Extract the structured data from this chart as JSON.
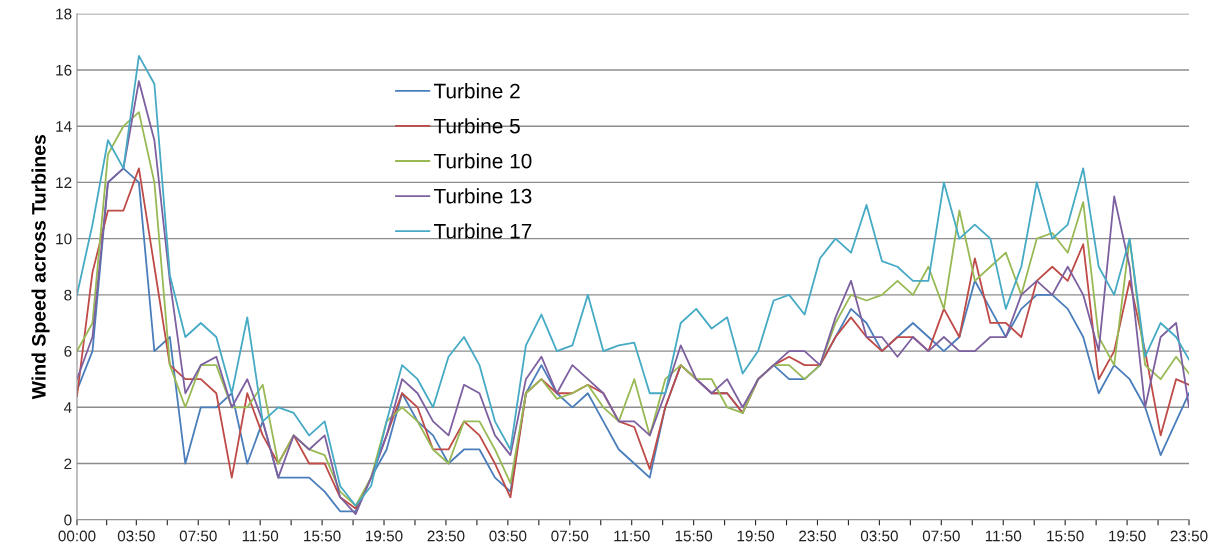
{
  "chart_data": {
    "type": "line",
    "ylabel": "Wind Speed across Turbines",
    "x": [
      "2000-01-01T00:00",
      "2000-01-01T01:00",
      "2000-01-01T02:00",
      "2000-01-01T03:00",
      "2000-01-01T04:00",
      "2000-01-01T05:00",
      "2000-01-01T06:00",
      "2000-01-01T07:00",
      "2000-01-01T08:00",
      "2000-01-01T09:00",
      "2000-01-01T10:00",
      "2000-01-01T11:00",
      "2000-01-01T12:00",
      "2000-01-01T13:00",
      "2000-01-01T14:00",
      "2000-01-01T15:00",
      "2000-01-01T16:00",
      "2000-01-01T17:00",
      "2000-01-01T18:00",
      "2000-01-01T19:00",
      "2000-01-01T20:00",
      "2000-01-01T21:00",
      "2000-01-01T22:00",
      "2000-01-01T23:00",
      "2000-01-02T00:00",
      "2000-01-02T01:00",
      "2000-01-02T02:00",
      "2000-01-02T03:00",
      "2000-01-02T04:00",
      "2000-01-02T05:00",
      "2000-01-02T06:00",
      "2000-01-02T07:00",
      "2000-01-02T08:00",
      "2000-01-02T09:00",
      "2000-01-02T10:00",
      "2000-01-02T11:00",
      "2000-01-02T12:00",
      "2000-01-02T13:00",
      "2000-01-02T14:00",
      "2000-01-02T15:00",
      "2000-01-02T16:00",
      "2000-01-02T17:00",
      "2000-01-02T18:00",
      "2000-01-02T19:00",
      "2000-01-02T20:00",
      "2000-01-02T21:00",
      "2000-01-02T22:00",
      "2000-01-02T23:00",
      "2000-01-03T00:00",
      "2000-01-03T01:00",
      "2000-01-03T02:00",
      "2000-01-03T03:00",
      "2000-01-03T04:00",
      "2000-01-03T05:00",
      "2000-01-03T06:00",
      "2000-01-03T07:00",
      "2000-01-03T08:00",
      "2000-01-03T09:00",
      "2000-01-03T10:00",
      "2000-01-03T11:00",
      "2000-01-03T12:00",
      "2000-01-03T13:00",
      "2000-01-03T14:00",
      "2000-01-03T15:00",
      "2000-01-03T16:00",
      "2000-01-03T17:00",
      "2000-01-03T18:00",
      "2000-01-03T19:00",
      "2000-01-03T20:00",
      "2000-01-03T21:00",
      "2000-01-03T22:00",
      "2000-01-03T23:00",
      "2000-01-03T23:50"
    ],
    "xlim": [
      "2000-01-01T00:00",
      "2000-01-03T23:50"
    ],
    "xticks": [
      {
        "value": "2000-01-01T00:00",
        "label": "00:00"
      },
      {
        "value": "2000-01-01T01:55",
        "label": null
      },
      {
        "value": "2000-01-01T03:50",
        "label": "03:50"
      },
      {
        "value": "2000-01-01T05:50",
        "label": null
      },
      {
        "value": "2000-01-01T07:50",
        "label": "07:50"
      },
      {
        "value": "2000-01-01T09:50",
        "label": null
      },
      {
        "value": "2000-01-01T11:50",
        "label": "11:50"
      },
      {
        "value": "2000-01-01T13:50",
        "label": null
      },
      {
        "value": "2000-01-01T15:50",
        "label": "15:50"
      },
      {
        "value": "2000-01-01T17:50",
        "label": null
      },
      {
        "value": "2000-01-01T19:50",
        "label": "19:50"
      },
      {
        "value": "2000-01-01T21:50",
        "label": null
      },
      {
        "value": "2000-01-01T23:50",
        "label": "23:50"
      },
      {
        "value": "2000-01-02T01:50",
        "label": null
      },
      {
        "value": "2000-01-02T03:50",
        "label": "03:50"
      },
      {
        "value": "2000-01-02T05:50",
        "label": null
      },
      {
        "value": "2000-01-02T07:50",
        "label": "07:50"
      },
      {
        "value": "2000-01-02T09:50",
        "label": null
      },
      {
        "value": "2000-01-02T11:50",
        "label": "11:50"
      },
      {
        "value": "2000-01-02T13:50",
        "label": null
      },
      {
        "value": "2000-01-02T15:50",
        "label": "15:50"
      },
      {
        "value": "2000-01-02T17:50",
        "label": null
      },
      {
        "value": "2000-01-02T19:50",
        "label": "19:50"
      },
      {
        "value": "2000-01-02T21:50",
        "label": null
      },
      {
        "value": "2000-01-02T23:50",
        "label": "23:50"
      },
      {
        "value": "2000-01-03T01:50",
        "label": null
      },
      {
        "value": "2000-01-03T03:50",
        "label": "03:50"
      },
      {
        "value": "2000-01-03T05:50",
        "label": null
      },
      {
        "value": "2000-01-03T07:50",
        "label": "07:50"
      },
      {
        "value": "2000-01-03T09:50",
        "label": null
      },
      {
        "value": "2000-01-03T11:50",
        "label": "11:50"
      },
      {
        "value": "2000-01-03T13:50",
        "label": null
      },
      {
        "value": "2000-01-03T15:50",
        "label": "15:50"
      },
      {
        "value": "2000-01-03T17:50",
        "label": null
      },
      {
        "value": "2000-01-03T19:50",
        "label": "19:50"
      },
      {
        "value": "2000-01-03T21:50",
        "label": null
      },
      {
        "value": "2000-01-03T23:50",
        "label": "23:50"
      }
    ],
    "ylim": [
      0,
      18
    ],
    "yticks": [
      0,
      2,
      4,
      6,
      8,
      10,
      12,
      14,
      16,
      18
    ],
    "grid": "y",
    "legend": "top left",
    "marker": "none",
    "line_style": "solid",
    "series": [
      {
        "name": "Turbine 2",
        "color": "#4a7ebb",
        "values": [
          4.6,
          6,
          12,
          12.5,
          12,
          6,
          6.5,
          2,
          4,
          4,
          4.5,
          2,
          3.5,
          1.5,
          1.5,
          1.5,
          1,
          0.3,
          0.3,
          1.5,
          2.5,
          4.5,
          3.5,
          3,
          2,
          2.5,
          2.5,
          1.5,
          1,
          4.5,
          5.5,
          4.5,
          4,
          4.5,
          3.5,
          2.5,
          2,
          1.5,
          4,
          5.5,
          5,
          4.5,
          4.5,
          3.8,
          5,
          5.5,
          5,
          5,
          5.5,
          6.5,
          7.5,
          7,
          6,
          6.5,
          7,
          6.5,
          6,
          6.5,
          8.5,
          7.5,
          6.5,
          7.5,
          8,
          8,
          7.5,
          6.5,
          4.5,
          5.5,
          5,
          4,
          2.3,
          3.5,
          4.5
        ]
      },
      {
        "name": "Turbine 5",
        "color": "#be4b48",
        "values": [
          4.4,
          8.8,
          11,
          11,
          12.5,
          9,
          5.5,
          5,
          5,
          4.5,
          1.5,
          4.5,
          3,
          2,
          3,
          2,
          2,
          0.8,
          0.4,
          1.5,
          3,
          4.5,
          4,
          2.5,
          2.5,
          3.5,
          3,
          2,
          0.8,
          4.5,
          5,
          4.5,
          4.5,
          4.8,
          4.5,
          3.5,
          3.3,
          1.8,
          4,
          5.5,
          5,
          4.5,
          4.5,
          3.8,
          5,
          5.5,
          5.8,
          5.5,
          5.5,
          6.5,
          7.2,
          6.5,
          6,
          6.5,
          6.5,
          6,
          7.5,
          6.5,
          9.3,
          7,
          7,
          6.5,
          8.5,
          9,
          8.5,
          9.8,
          5,
          6,
          8.5,
          6,
          3,
          5,
          4.8
        ]
      },
      {
        "name": "Turbine 10",
        "color": "#98b954",
        "values": [
          6,
          7,
          13,
          14,
          14.5,
          12,
          5.5,
          4,
          5.5,
          5.5,
          4,
          4,
          4.8,
          2,
          3,
          2.5,
          2.3,
          1,
          0.5,
          1.5,
          3.5,
          4,
          3.5,
          2.5,
          2,
          3.5,
          3.5,
          2.5,
          1.3,
          4.5,
          5,
          4.3,
          4.5,
          4.8,
          4,
          3.5,
          5,
          3,
          5,
          5.5,
          5,
          5,
          4,
          3.8,
          5,
          5.5,
          5.5,
          5,
          5.5,
          7,
          8,
          7.8,
          8,
          8.5,
          8,
          9,
          7.5,
          11,
          8.5,
          9,
          9.5,
          8,
          10,
          10.2,
          9.5,
          11.3,
          6.5,
          5.5,
          10,
          5.5,
          5,
          5.8,
          5.2
        ]
      },
      {
        "name": "Turbine 13",
        "color": "#7d60a0",
        "values": [
          5,
          6.5,
          12,
          12.5,
          15.6,
          13.5,
          8.5,
          4.5,
          5.5,
          5.8,
          4,
          5,
          3.5,
          1.5,
          3,
          2.5,
          3,
          0.8,
          0.2,
          1.5,
          3,
          5,
          4.5,
          3.5,
          3,
          4.8,
          4.5,
          3,
          2.3,
          5,
          5.8,
          4.5,
          5.5,
          5,
          4.5,
          3.5,
          3.5,
          3,
          4.5,
          6.2,
          5,
          4.5,
          5,
          4,
          5,
          5.5,
          6,
          6,
          5.5,
          7.2,
          8.5,
          6.5,
          6.5,
          5.8,
          6.5,
          6,
          6.5,
          6,
          6,
          6.5,
          6.5,
          8,
          8.5,
          8,
          9,
          8,
          6,
          11.5,
          9,
          4,
          6.5,
          7,
          4
        ]
      },
      {
        "name": "Turbine 17",
        "color": "#46aac5",
        "values": [
          8,
          10.5,
          13.5,
          12.5,
          16.5,
          15.5,
          8.7,
          6.5,
          7,
          6.5,
          4.5,
          7.2,
          3.5,
          4,
          3.8,
          3,
          3.5,
          1.2,
          0.5,
          1.2,
          3.5,
          5.5,
          5,
          4,
          5.8,
          6.5,
          5.5,
          3.5,
          2.5,
          6.2,
          7.3,
          6,
          6.2,
          8,
          6,
          6.2,
          6.3,
          4.5,
          4.5,
          7,
          7.5,
          6.8,
          7.2,
          5.2,
          6,
          7.8,
          8,
          7.3,
          9.3,
          10,
          9.5,
          11.2,
          9.2,
          9,
          8.5,
          8.5,
          12,
          10,
          10.5,
          10,
          7.5,
          9,
          12,
          10,
          10.5,
          12.5,
          9,
          8,
          10,
          5.8,
          7,
          6.5,
          5.7
        ]
      }
    ]
  }
}
